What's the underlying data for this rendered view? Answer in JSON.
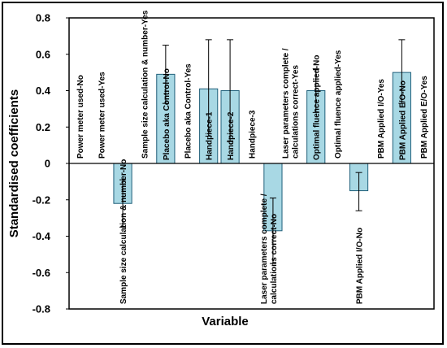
{
  "chart_data": {
    "type": "bar",
    "xlabel": "Variable",
    "ylabel": "Standardised coefficients",
    "ylim": [
      -0.8,
      0.8
    ],
    "yticks": [
      "0.8",
      "0.6",
      "0.4",
      "0.2",
      "0",
      "-0.2",
      "-0.4",
      "-0.6",
      "-0.8"
    ],
    "ytick_values": [
      0.8,
      0.6,
      0.4,
      0.2,
      0,
      -0.2,
      -0.4,
      -0.6,
      -0.8
    ],
    "bar_color": "#a8d8e4",
    "bar_edge_color": "#1f5f7a",
    "categories": [
      "Power meter used-No",
      "Power meter used-Yes",
      "Sample size calculation & number-No",
      "Sample size calculation & number-Yes",
      "Placebo aka Control-No",
      "Placebo aka Control-Yes",
      "Handpiece-1",
      "Handpiece-2",
      "Handpiece-3",
      "Laser parameters complete / calculations correct-No",
      "Laser parameters complete / calculations correct-Yes",
      "Optimal fluence applied-No",
      "Optimal fluence applied-Yes",
      "PBM Applied I/O-No",
      "PBM Applied I/O-Yes",
      "PBM Applied  E/O-No",
      "PBM Applied  E/O-Yes"
    ],
    "values": [
      0,
      0,
      -0.22,
      0,
      0.49,
      0,
      0.41,
      0.4,
      0,
      -0.37,
      0,
      0.4,
      0,
      -0.15,
      0,
      0.5,
      0
    ],
    "error_low": [
      null,
      null,
      -0.35,
      null,
      0.33,
      null,
      0.15,
      0.12,
      null,
      -0.55,
      null,
      0.28,
      null,
      -0.26,
      null,
      0.33,
      null
    ],
    "error_high": [
      null,
      null,
      -0.09,
      null,
      0.65,
      null,
      0.68,
      0.68,
      null,
      -0.19,
      null,
      0.52,
      null,
      -0.05,
      null,
      0.68,
      null
    ]
  }
}
